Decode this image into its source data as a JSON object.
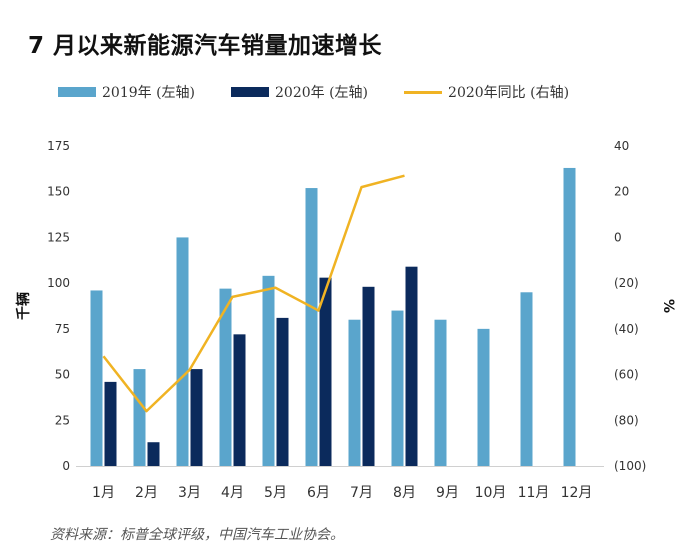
{
  "title": "7 月以来新能源汽车销量加速增长",
  "source": "资料来源：标普全球评级，中国汽车工业协会。",
  "chart_data": {
    "type": "bar",
    "categories": [
      "1月",
      "2月",
      "3月",
      "4月",
      "5月",
      "6月",
      "7月",
      "8月",
      "9月",
      "10月",
      "11月",
      "12月"
    ],
    "series": [
      {
        "name": "2019年 (左轴)",
        "type": "bar",
        "axis": "left",
        "color": "#5aa5cc",
        "values": [
          96,
          53,
          125,
          97,
          104,
          152,
          80,
          85,
          80,
          75,
          95,
          163
        ]
      },
      {
        "name": "2020年 (左轴)",
        "type": "bar",
        "axis": "left",
        "color": "#0b2a5c",
        "values": [
          46,
          13,
          53,
          72,
          81,
          103,
          98,
          109,
          null,
          null,
          null,
          null
        ]
      },
      {
        "name": "2020年同比 (右轴)",
        "type": "line",
        "axis": "right",
        "color": "#f0b323",
        "values": [
          -52,
          -76,
          -58,
          -26,
          -22,
          -32,
          22,
          27,
          null,
          null,
          null,
          null
        ]
      }
    ],
    "ylabel_left": "千辆",
    "ylabel_right": "%",
    "ylim_left": [
      0,
      175
    ],
    "ylim_right": [
      -100,
      40
    ],
    "yticks_left": [
      "0",
      "25",
      "50",
      "75",
      "100",
      "125",
      "150",
      "175"
    ],
    "yticks_right": [
      "(100)",
      "(80)",
      "(60)",
      "(40)",
      "(20)",
      "0",
      "20",
      "40"
    ],
    "grid": false,
    "legend_position": "top"
  }
}
